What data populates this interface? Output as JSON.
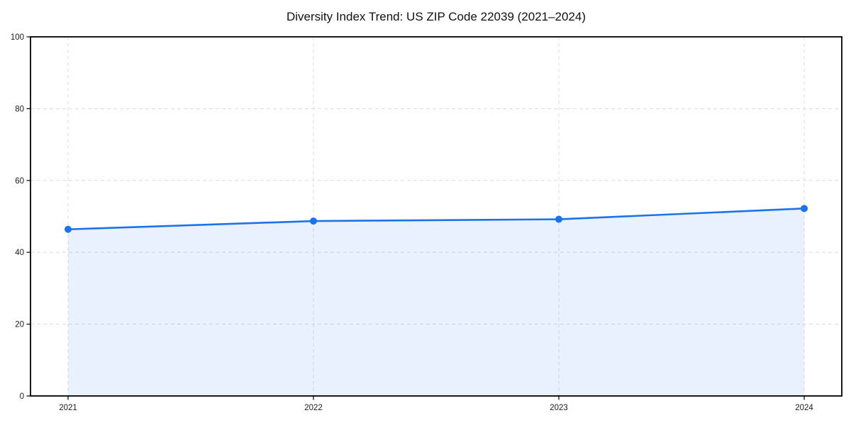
{
  "chart_data": {
    "type": "line",
    "area_fill": true,
    "title": "Diversity Index Trend: US ZIP Code 22039 (2021–2024)",
    "categories": [
      "2021",
      "2022",
      "2023",
      "2024"
    ],
    "series": [
      {
        "name": "Diversity Index",
        "values": [
          46.4,
          48.7,
          49.2,
          52.2
        ]
      }
    ],
    "xlabel": "",
    "ylabel": "",
    "ylim": [
      0,
      100
    ],
    "yticks": [
      0,
      20,
      40,
      60,
      80,
      100
    ],
    "grid": "dashed-both-axes",
    "legend": "none",
    "markers": "circle",
    "colors": {
      "line": "#1a73e8",
      "marker": "#1a73e8",
      "fill": "rgba(26,115,232,0.10)",
      "grid": "#dcdcdc",
      "spine": "#000000",
      "tick_label": "#1a1a1a",
      "title": "#111111",
      "background": "#ffffff"
    }
  }
}
